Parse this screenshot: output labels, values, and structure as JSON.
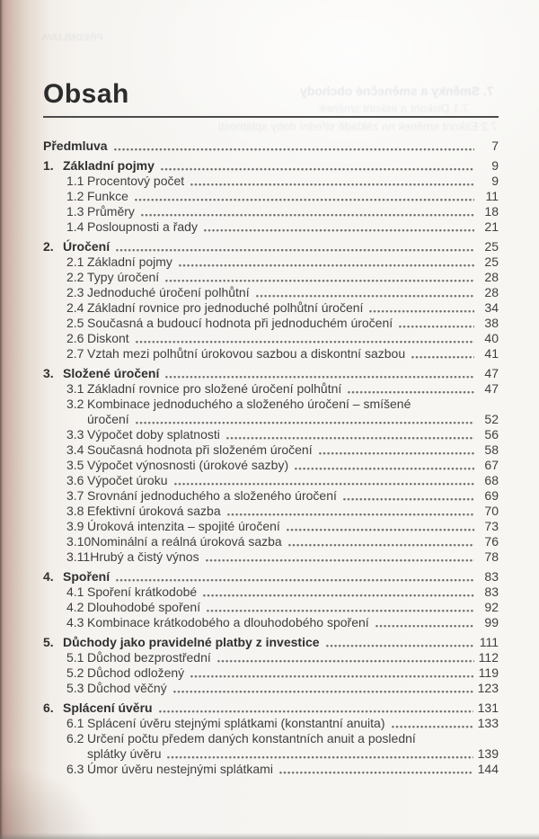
{
  "page": {
    "heading": "Obsah"
  },
  "toc": {
    "entries": [
      {
        "num": "",
        "label": "Předmluva",
        "page": "7",
        "level": 0,
        "bold": true
      },
      {
        "num": "1.",
        "label": "Základní pojmy",
        "page": "9",
        "level": 0,
        "bold": true
      },
      {
        "num": "1.1",
        "label": "Procentový počet",
        "page": "9",
        "level": 1
      },
      {
        "num": "1.2",
        "label": "Funkce",
        "page": "11",
        "level": 1
      },
      {
        "num": "1.3",
        "label": "Průměry",
        "page": "18",
        "level": 1
      },
      {
        "num": "1.4",
        "label": "Posloupnosti a řady",
        "page": "21",
        "level": 1
      },
      {
        "num": "2.",
        "label": "Úročení",
        "page": "25",
        "level": 0,
        "bold": true
      },
      {
        "num": "2.1",
        "label": "Základní pojmy",
        "page": "25",
        "level": 1
      },
      {
        "num": "2.2",
        "label": "Typy úročení",
        "page": "28",
        "level": 1
      },
      {
        "num": "2.3",
        "label": "Jednoduché úročení polhůtní",
        "page": "28",
        "level": 1
      },
      {
        "num": "2.4",
        "label": "Základní rovnice pro jednoduché polhůtní úročení",
        "page": "34",
        "level": 1
      },
      {
        "num": "2.5",
        "label": "Současná a budoucí hodnota při jednoduchém úročení",
        "page": "38",
        "level": 1
      },
      {
        "num": "2.6",
        "label": "Diskont",
        "page": "40",
        "level": 1
      },
      {
        "num": "2.7",
        "label": "Vztah mezi polhůtní úrokovou sazbou a diskontní sazbou",
        "page": "41",
        "level": 1
      },
      {
        "num": "3.",
        "label": "Složené úročení",
        "page": "47",
        "level": 0,
        "bold": true
      },
      {
        "num": "3.1",
        "label": "Základní rovnice pro složené úročení polhůtní",
        "page": "47",
        "level": 1
      },
      {
        "num": "3.2",
        "label": "Kombinace jednoduchého a složeného úročení – smíšené",
        "label2": "úročení",
        "page": "52",
        "level": 1
      },
      {
        "num": "3.3",
        "label": "Výpočet doby splatnosti",
        "page": "56",
        "level": 1
      },
      {
        "num": "3.4",
        "label": "Současná hodnota při složeném úročení",
        "page": "58",
        "level": 1
      },
      {
        "num": "3.5",
        "label": "Výpočet výnosnosti (úrokové sazby)",
        "page": "67",
        "level": 1
      },
      {
        "num": "3.6",
        "label": "Výpočet úroku",
        "page": "68",
        "level": 1
      },
      {
        "num": "3.7",
        "label": "Srovnání jednoduchého a složeného úročení",
        "page": "69",
        "level": 1
      },
      {
        "num": "3.8",
        "label": "Efektivní úroková sazba",
        "page": "70",
        "level": 1
      },
      {
        "num": "3.9",
        "label": "Úroková intenzita – spojité úročení",
        "page": "73",
        "level": 1
      },
      {
        "num": "3.10",
        "label": "Nominální a reálná úroková sazba",
        "page": "76",
        "level": 1
      },
      {
        "num": "3.11",
        "label": "Hrubý a čistý výnos",
        "page": "78",
        "level": 1
      },
      {
        "num": "4.",
        "label": "Spoření",
        "page": "83",
        "level": 0,
        "bold": true
      },
      {
        "num": "4.1",
        "label": "Spoření krátkodobé",
        "page": "83",
        "level": 1
      },
      {
        "num": "4.2",
        "label": "Dlouhodobé spoření",
        "page": "92",
        "level": 1
      },
      {
        "num": "4.3",
        "label": "Kombinace krátkodobého a dlouhodobého spoření",
        "page": "99",
        "level": 1
      },
      {
        "num": "5.",
        "label": "Důchody jako pravidelné platby z investice",
        "page": "111",
        "level": 0,
        "bold": true
      },
      {
        "num": "5.1",
        "label": "Důchod bezprostřední",
        "page": "112",
        "level": 1
      },
      {
        "num": "5.2",
        "label": "Důchod odložený",
        "page": "119",
        "level": 1
      },
      {
        "num": "5.3",
        "label": "Důchod věčný",
        "page": "123",
        "level": 1
      },
      {
        "num": "6.",
        "label": "Splácení úvěru",
        "page": "131",
        "level": 0,
        "bold": true
      },
      {
        "num": "6.1",
        "label": "Splácení úvěru stejnými splátkami (konstantní anuita)",
        "page": "133",
        "level": 1
      },
      {
        "num": "6.2",
        "label": "Určení počtu předem daných konstantních anuit a poslední",
        "label2": "splátky úvěru",
        "page": "139",
        "level": 1
      },
      {
        "num": "6.3",
        "label": "Úmor úvěru nestejnými splátkami",
        "page": "144",
        "level": 1
      }
    ]
  },
  "bleed_through": {
    "lines": [
      "PŘEDMLUVA",
      "7. Směnky a směnečné obchody",
      "7.1 Diskont a eskont směnek",
      "7.2 Eskont směnek na základě střední doby splatnosti"
    ]
  },
  "colors": {
    "text": "#3f3f3f",
    "heading": "#2c2c2c",
    "rule": "#4b4b4b",
    "leader_dot": "#6e6e6e",
    "page_background": "#f6f4f1",
    "spine_edge": "#7b675f",
    "spine_pink": "#d3bcb2"
  }
}
